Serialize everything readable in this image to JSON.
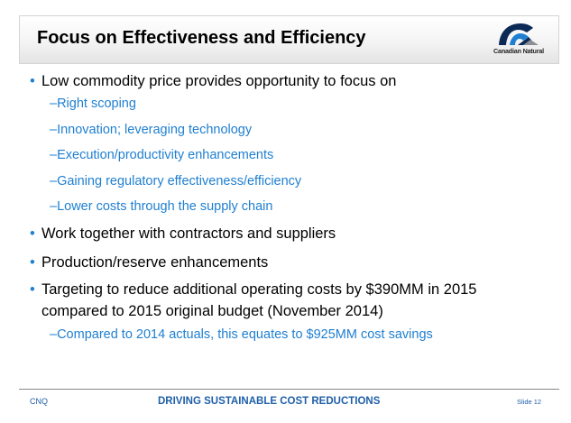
{
  "title": "Focus on Effectiveness and Efficiency",
  "logo": {
    "text": "Canadian Natural",
    "icon": "canadian-natural-logo"
  },
  "bullets": [
    {
      "text": "Low commodity price provides opportunity to focus on",
      "sub": [
        "Right scoping",
        "Innovation; leveraging technology",
        "Execution/productivity enhancements",
        "Gaining regulatory effectiveness/efficiency",
        "Lower costs through the supply chain"
      ]
    },
    {
      "text": "Work together with contractors and suppliers",
      "sub": []
    },
    {
      "text": "Production/reserve enhancements",
      "sub": []
    },
    {
      "text_line1": "Targeting to reduce additional operating costs by $390MM in 2015",
      "text_line2": "compared to 2015 original budget (November 2014)",
      "sub": [
        "Compared to 2014 actuals, this equates to $925MM cost savings"
      ]
    }
  ],
  "bullet_glyph": "•",
  "sub_bullet_glyph": "–",
  "footer": {
    "left": "CNQ",
    "center": "DRIVING SUSTAINABLE COST REDUCTIONS",
    "right": "Slide 12"
  },
  "colors": {
    "accent_blue": "#1f7fd1",
    "footer_blue": "#1f5fa8",
    "text": "#000000"
  }
}
